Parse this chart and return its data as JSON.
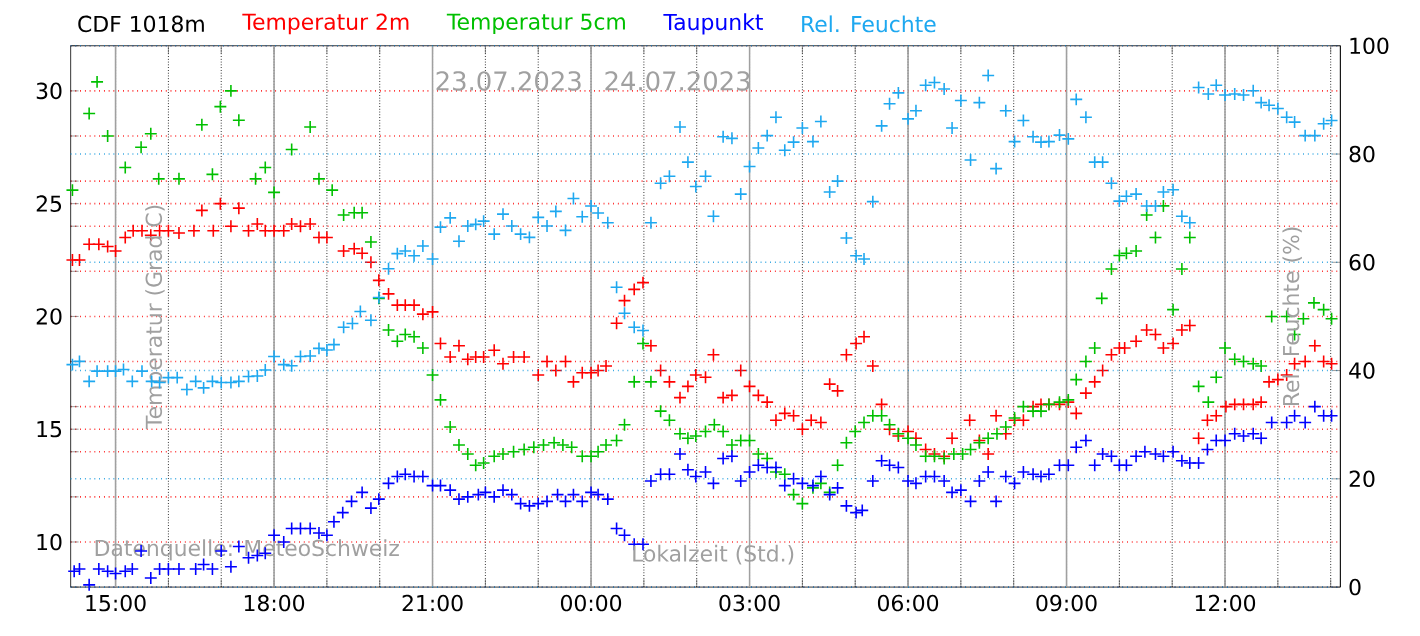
{
  "chart_data": {
    "type": "scatter",
    "title": "CDF 1018m",
    "xlabel": "Lokalzeit (Std.)",
    "ylabel": "Temperatur (Grad C)",
    "y2label": "Rel. Feuchte (%)",
    "annotations": [
      "23.07.2023",
      "24.07.2023",
      "Datenquelle: MeteoSchweiz"
    ],
    "xlim": [
      "2023-07-23T14:09",
      "2023-07-24T14:11"
    ],
    "ylim": [
      8,
      32
    ],
    "y2lim": [
      0,
      100
    ],
    "xticks": [
      {
        "value": "2023-07-23T15:00",
        "label": "15:00"
      },
      {
        "value": "2023-07-23T16:00",
        "label": null
      },
      {
        "value": "2023-07-23T17:00",
        "label": null
      },
      {
        "value": "2023-07-23T18:00",
        "label": "18:00"
      },
      {
        "value": "2023-07-23T19:00",
        "label": null
      },
      {
        "value": "2023-07-23T20:00",
        "label": null
      },
      {
        "value": "2023-07-23T21:00",
        "label": "21:00"
      },
      {
        "value": "2023-07-23T22:00",
        "label": null
      },
      {
        "value": "2023-07-23T23:00",
        "label": null
      },
      {
        "value": "2023-07-24T00:00",
        "label": "00:00"
      },
      {
        "value": "2023-07-24T01:00",
        "label": null
      },
      {
        "value": "2023-07-24T02:00",
        "label": null
      },
      {
        "value": "2023-07-24T03:00",
        "label": "03:00"
      },
      {
        "value": "2023-07-24T04:00",
        "label": null
      },
      {
        "value": "2023-07-24T05:00",
        "label": null
      },
      {
        "value": "2023-07-24T06:00",
        "label": "06:00"
      },
      {
        "value": "2023-07-24T07:00",
        "label": null
      },
      {
        "value": "2023-07-24T08:00",
        "label": null
      },
      {
        "value": "2023-07-24T09:00",
        "label": "09:00"
      },
      {
        "value": "2023-07-24T10:00",
        "label": null
      },
      {
        "value": "2023-07-24T11:00",
        "label": null
      },
      {
        "value": "2023-07-24T12:00",
        "label": "12:00"
      },
      {
        "value": "2023-07-24T13:00",
        "label": null
      },
      {
        "value": "2023-07-24T14:00",
        "label": null
      }
    ],
    "yticks": [
      {
        "value": 8,
        "label": null
      },
      10,
      {
        "value": 12,
        "label": null
      },
      {
        "value": 14,
        "label": null
      },
      15,
      {
        "value": 16,
        "label": null
      },
      {
        "value": 18,
        "label": null
      },
      20,
      {
        "value": 22,
        "label": null
      },
      {
        "value": 24,
        "label": null
      },
      25,
      {
        "value": 26,
        "label": null
      },
      {
        "value": 28,
        "label": null
      },
      30,
      {
        "value": 32,
        "label": null
      }
    ],
    "y2ticks": [
      0,
      20,
      40,
      60,
      80,
      100
    ],
    "grid": true,
    "legend": "top",
    "marker": "cross",
    "series": [
      {
        "name": "Temperatur 2m",
        "color": "#ff0000",
        "x": [
          "2023-07-23T14:11",
          "2023-07-23T14:19",
          "2023-07-23T14:30",
          "2023-07-23T14:41",
          "2023-07-23T14:51",
          "2023-07-23T15:00",
          "2023-07-23T15:11",
          "2023-07-23T15:20",
          "2023-07-23T15:30",
          "2023-07-23T15:40",
          "2023-07-23T15:50",
          "2023-07-23T16:00",
          "2023-07-23T16:12",
          "2023-07-23T16:29",
          "2023-07-23T16:38",
          "2023-07-23T16:51",
          "2023-07-23T16:59",
          "2023-07-23T17:11",
          "2023-07-23T17:20",
          "2023-07-23T17:31",
          "2023-07-23T17:41",
          "2023-07-23T17:50",
          "2023-07-23T18:00",
          "2023-07-23T18:11",
          "2023-07-23T18:20",
          "2023-07-23T18:30",
          "2023-07-23T18:41",
          "2023-07-23T18:51",
          "2023-07-23T19:00",
          "2023-07-23T19:19",
          "2023-07-23T19:31",
          "2023-07-23T19:40",
          "2023-07-23T19:50",
          "2023-07-23T19:59",
          "2023-07-23T20:10",
          "2023-07-23T20:20",
          "2023-07-23T20:29",
          "2023-07-23T20:39",
          "2023-07-23T20:49",
          "2023-07-23T21:00",
          "2023-07-23T21:09",
          "2023-07-23T21:20",
          "2023-07-23T21:30",
          "2023-07-23T21:40",
          "2023-07-23T21:49",
          "2023-07-23T21:58",
          "2023-07-23T22:10",
          "2023-07-23T22:20",
          "2023-07-23T22:32",
          "2023-07-23T22:44",
          "2023-07-23T23:00",
          "2023-07-23T23:10",
          "2023-07-23T23:20",
          "2023-07-23T23:31",
          "2023-07-23T23:40",
          "2023-07-23T23:50",
          "2023-07-24T00:00",
          "2023-07-24T00:08",
          "2023-07-24T00:17",
          "2023-07-24T00:29",
          "2023-07-24T00:38",
          "2023-07-24T00:49",
          "2023-07-24T00:59",
          "2023-07-24T01:08",
          "2023-07-24T01:19",
          "2023-07-24T01:29",
          "2023-07-24T01:41",
          "2023-07-24T01:50",
          "2023-07-24T01:59",
          "2023-07-24T02:10",
          "2023-07-24T02:19",
          "2023-07-24T02:30",
          "2023-07-24T02:40",
          "2023-07-24T02:50",
          "2023-07-24T03:00",
          "2023-07-24T03:10",
          "2023-07-24T03:20",
          "2023-07-24T03:30",
          "2023-07-24T03:40",
          "2023-07-24T03:50",
          "2023-07-24T04:00",
          "2023-07-24T04:10",
          "2023-07-24T04:21",
          "2023-07-24T04:31",
          "2023-07-24T04:40",
          "2023-07-24T04:50",
          "2023-07-24T05:01",
          "2023-07-24T05:10",
          "2023-07-24T05:20",
          "2023-07-24T05:30",
          "2023-07-24T05:39",
          "2023-07-24T05:49",
          "2023-07-24T06:00",
          "2023-07-24T06:09",
          "2023-07-24T06:20",
          "2023-07-24T06:30",
          "2023-07-24T06:41",
          "2023-07-24T06:50",
          "2023-07-24T07:10",
          "2023-07-24T07:21",
          "2023-07-24T07:31",
          "2023-07-24T07:40",
          "2023-07-24T07:51",
          "2023-07-24T08:01",
          "2023-07-24T08:11",
          "2023-07-24T08:22",
          "2023-07-24T08:31",
          "2023-07-24T08:40",
          "2023-07-24T08:52",
          "2023-07-24T09:02",
          "2023-07-24T09:11",
          "2023-07-24T09:22",
          "2023-07-24T09:32",
          "2023-07-24T09:41",
          "2023-07-24T09:51",
          "2023-07-24T10:00",
          "2023-07-24T10:06",
          "2023-07-24T10:19",
          "2023-07-24T10:31",
          "2023-07-24T10:41",
          "2023-07-24T10:50",
          "2023-07-24T11:01",
          "2023-07-24T11:11",
          "2023-07-24T11:20",
          "2023-07-24T11:30",
          "2023-07-24T11:40",
          "2023-07-24T11:50",
          "2023-07-24T12:01",
          "2023-07-24T12:11",
          "2023-07-24T12:21",
          "2023-07-24T12:32",
          "2023-07-24T12:41",
          "2023-07-24T12:50",
          "2023-07-24T13:00",
          "2023-07-24T13:10",
          "2023-07-24T13:19",
          "2023-07-24T13:31",
          "2023-07-24T13:42",
          "2023-07-24T13:52",
          "2023-07-24T14:01"
        ],
        "values": [
          22.5,
          22.5,
          23.2,
          23.2,
          23.1,
          22.9,
          23.5,
          23.8,
          23.8,
          23.6,
          23.8,
          23.8,
          23.7,
          23.8,
          24.7,
          23.8,
          25.0,
          24.0,
          24.8,
          23.8,
          24.1,
          23.8,
          23.8,
          23.8,
          24.1,
          24.0,
          24.1,
          23.5,
          23.5,
          22.9,
          23.0,
          22.8,
          22.4,
          21.6,
          21.0,
          20.5,
          20.5,
          20.5,
          20.1,
          20.2,
          18.8,
          18.2,
          18.7,
          18.1,
          18.2,
          18.2,
          18.5,
          17.9,
          18.2,
          18.2,
          17.4,
          18.0,
          17.6,
          18.0,
          17.1,
          17.5,
          17.5,
          17.6,
          17.8,
          19.7,
          20.7,
          21.2,
          21.5,
          18.7,
          17.6,
          17.1,
          16.4,
          16.9,
          17.4,
          17.3,
          18.3,
          16.4,
          16.5,
          17.6,
          16.9,
          16.5,
          16.2,
          15.4,
          15.7,
          15.6,
          15.0,
          15.4,
          15.3,
          17.0,
          16.7,
          18.3,
          18.8,
          19.1,
          17.8,
          16.1,
          15.0,
          14.7,
          14.9,
          14.6,
          14.1,
          13.9,
          13.8,
          14.6,
          15.4,
          14.5,
          13.9,
          15.6,
          14.8,
          15.4,
          15.4,
          16.0,
          16.1,
          16.1,
          16.1,
          16.2,
          15.7,
          16.6,
          17.1,
          17.6,
          18.3,
          18.6,
          18.6,
          18.9,
          19.4,
          19.2,
          18.6,
          18.8,
          19.4,
          19.6,
          14.6,
          15.4,
          15.6,
          16.0,
          16.1,
          16.1,
          16.1,
          16.2,
          17.1,
          17.2,
          17.4,
          17.9,
          18.0,
          18.7,
          18.0,
          17.9
        ]
      },
      {
        "name": "Temperatur 5cm",
        "color": "#00c000",
        "x": [
          "2023-07-23T14:11",
          "2023-07-23T14:30",
          "2023-07-23T14:39",
          "2023-07-23T14:51",
          "2023-07-23T15:11",
          "2023-07-23T15:29",
          "2023-07-23T15:40",
          "2023-07-23T15:49",
          "2023-07-23T16:12",
          "2023-07-23T16:38",
          "2023-07-23T16:50",
          "2023-07-23T16:59",
          "2023-07-23T17:11",
          "2023-07-23T17:20",
          "2023-07-23T17:39",
          "2023-07-23T17:50",
          "2023-07-23T18:00",
          "2023-07-23T18:20",
          "2023-07-23T18:41",
          "2023-07-23T18:51",
          "2023-07-23T19:06",
          "2023-07-23T19:19",
          "2023-07-23T19:31",
          "2023-07-23T19:40",
          "2023-07-23T19:50",
          "2023-07-23T19:59",
          "2023-07-23T20:10",
          "2023-07-23T20:20",
          "2023-07-23T20:29",
          "2023-07-23T20:39",
          "2023-07-23T20:49",
          "2023-07-23T21:00",
          "2023-07-23T21:09",
          "2023-07-23T21:20",
          "2023-07-23T21:30",
          "2023-07-23T21:40",
          "2023-07-23T21:49",
          "2023-07-23T21:58",
          "2023-07-23T22:10",
          "2023-07-23T22:20",
          "2023-07-23T22:32",
          "2023-07-23T22:44",
          "2023-07-23T22:55",
          "2023-07-23T23:06",
          "2023-07-23T23:18",
          "2023-07-23T23:28",
          "2023-07-23T23:38",
          "2023-07-23T23:50",
          "2023-07-24T00:00",
          "2023-07-24T00:08",
          "2023-07-24T00:17",
          "2023-07-24T00:29",
          "2023-07-24T00:38",
          "2023-07-24T00:49",
          "2023-07-24T00:59",
          "2023-07-24T01:08",
          "2023-07-24T01:19",
          "2023-07-24T01:29",
          "2023-07-24T01:41",
          "2023-07-24T01:50",
          "2023-07-24T01:59",
          "2023-07-24T02:10",
          "2023-07-24T02:20",
          "2023-07-24T02:30",
          "2023-07-24T02:40",
          "2023-07-24T02:50",
          "2023-07-24T03:00",
          "2023-07-24T03:10",
          "2023-07-24T03:20",
          "2023-07-24T03:30",
          "2023-07-24T03:40",
          "2023-07-24T03:50",
          "2023-07-24T04:00",
          "2023-07-24T04:12",
          "2023-07-24T04:21",
          "2023-07-24T04:31",
          "2023-07-24T04:40",
          "2023-07-24T04:50",
          "2023-07-24T05:00",
          "2023-07-24T05:10",
          "2023-07-24T05:20",
          "2023-07-24T05:30",
          "2023-07-24T05:39",
          "2023-07-24T05:49",
          "2023-07-24T06:00",
          "2023-07-24T06:09",
          "2023-07-24T06:20",
          "2023-07-24T06:30",
          "2023-07-24T06:41",
          "2023-07-24T06:52",
          "2023-07-24T07:02",
          "2023-07-24T07:11",
          "2023-07-24T07:21",
          "2023-07-24T07:31",
          "2023-07-24T07:41",
          "2023-07-24T07:51",
          "2023-07-24T08:01",
          "2023-07-24T08:11",
          "2023-07-24T08:22",
          "2023-07-24T08:31",
          "2023-07-24T08:40",
          "2023-07-24T08:52",
          "2023-07-24T09:02",
          "2023-07-24T09:11",
          "2023-07-24T09:22",
          "2023-07-24T09:32",
          "2023-07-24T09:40",
          "2023-07-24T09:51",
          "2023-07-24T10:00",
          "2023-07-24T10:08",
          "2023-07-24T10:19",
          "2023-07-24T10:31",
          "2023-07-24T10:41",
          "2023-07-24T10:50",
          "2023-07-24T11:01",
          "2023-07-24T11:11",
          "2023-07-24T11:20",
          "2023-07-24T11:30",
          "2023-07-24T11:41",
          "2023-07-24T11:50",
          "2023-07-24T12:00",
          "2023-07-24T12:11",
          "2023-07-24T12:21",
          "2023-07-24T12:32",
          "2023-07-24T12:41",
          "2023-07-24T12:53",
          "2023-07-24T13:10",
          "2023-07-24T13:19",
          "2023-07-24T13:29",
          "2023-07-24T13:41",
          "2023-07-24T13:52",
          "2023-07-24T14:01"
        ],
        "values": [
          25.6,
          29.0,
          30.4,
          28.0,
          26.6,
          27.5,
          28.1,
          26.1,
          26.1,
          28.5,
          26.3,
          29.3,
          30.0,
          28.7,
          26.1,
          26.6,
          25.5,
          27.4,
          28.4,
          26.1,
          25.6,
          24.5,
          24.6,
          24.6,
          23.3,
          20.8,
          19.4,
          18.9,
          19.2,
          19.1,
          18.6,
          17.4,
          16.3,
          15.1,
          14.3,
          13.9,
          13.4,
          13.5,
          13.8,
          13.9,
          14.0,
          14.1,
          14.2,
          14.3,
          14.4,
          14.3,
          14.2,
          13.8,
          13.8,
          14.0,
          14.3,
          14.5,
          15.2,
          17.1,
          18.8,
          17.1,
          15.8,
          15.4,
          14.8,
          14.6,
          14.7,
          14.9,
          15.2,
          14.9,
          14.3,
          14.5,
          14.5,
          13.9,
          13.7,
          13.1,
          13.0,
          12.1,
          11.7,
          12.4,
          12.6,
          12.2,
          13.4,
          14.4,
          14.9,
          15.3,
          15.6,
          15.6,
          15.2,
          14.8,
          14.6,
          14.3,
          13.8,
          13.8,
          13.7,
          13.9,
          13.9,
          14.1,
          14.4,
          14.6,
          14.8,
          15.1,
          15.5,
          16.0,
          15.8,
          15.8,
          16.1,
          16.2,
          16.3,
          17.2,
          18.0,
          18.6,
          20.8,
          22.1,
          22.7,
          22.8,
          22.9,
          24.5,
          23.5,
          24.9,
          20.3,
          22.1,
          23.5,
          16.9,
          16.2,
          17.3,
          18.6,
          18.1,
          18.0,
          17.9,
          17.8,
          20.0,
          20.0,
          19.2,
          19.9,
          20.6,
          20.3,
          19.9
        ]
      },
      {
        "name": "Taupunkt",
        "color": "#0000ff",
        "x": [
          "2023-07-23T14:13",
          "2023-07-23T14:19",
          "2023-07-23T14:30",
          "2023-07-23T14:41",
          "2023-07-23T14:51",
          "2023-07-23T15:00",
          "2023-07-23T15:11",
          "2023-07-23T15:19",
          "2023-07-23T15:29",
          "2023-07-23T15:40",
          "2023-07-23T15:50",
          "2023-07-23T16:00",
          "2023-07-23T16:12",
          "2023-07-23T16:31",
          "2023-07-23T16:40",
          "2023-07-23T16:50",
          "2023-07-23T17:00",
          "2023-07-23T17:11",
          "2023-07-23T17:20",
          "2023-07-23T17:31",
          "2023-07-23T17:41",
          "2023-07-23T17:50",
          "2023-07-23T18:00",
          "2023-07-23T18:11",
          "2023-07-23T18:20",
          "2023-07-23T18:30",
          "2023-07-23T18:41",
          "2023-07-23T18:51",
          "2023-07-23T19:00",
          "2023-07-23T19:08",
          "2023-07-23T19:18",
          "2023-07-23T19:28",
          "2023-07-23T19:40",
          "2023-07-23T19:50",
          "2023-07-23T19:59",
          "2023-07-23T20:10",
          "2023-07-23T20:20",
          "2023-07-23T20:29",
          "2023-07-23T20:39",
          "2023-07-23T20:49",
          "2023-07-23T21:00",
          "2023-07-23T21:09",
          "2023-07-23T21:20",
          "2023-07-23T21:30",
          "2023-07-23T21:40",
          "2023-07-23T21:52",
          "2023-07-23T22:00",
          "2023-07-23T22:10",
          "2023-07-23T22:20",
          "2023-07-23T22:30",
          "2023-07-23T22:40",
          "2023-07-23T22:50",
          "2023-07-23T23:00",
          "2023-07-23T23:10",
          "2023-07-23T23:22",
          "2023-07-23T23:31",
          "2023-07-23T23:40",
          "2023-07-23T23:50",
          "2023-07-24T00:00",
          "2023-07-24T00:08",
          "2023-07-24T00:19",
          "2023-07-24T00:29",
          "2023-07-24T00:38",
          "2023-07-24T00:49",
          "2023-07-24T00:59",
          "2023-07-24T01:08",
          "2023-07-24T01:19",
          "2023-07-24T01:29",
          "2023-07-24T01:41",
          "2023-07-24T01:50",
          "2023-07-24T01:59",
          "2023-07-24T02:10",
          "2023-07-24T02:19",
          "2023-07-24T02:30",
          "2023-07-24T02:40",
          "2023-07-24T02:50",
          "2023-07-24T03:00",
          "2023-07-24T03:10",
          "2023-07-24T03:20",
          "2023-07-24T03:30",
          "2023-07-24T03:40",
          "2023-07-24T03:50",
          "2023-07-24T04:00",
          "2023-07-24T04:12",
          "2023-07-24T04:21",
          "2023-07-24T04:31",
          "2023-07-24T04:40",
          "2023-07-24T04:50",
          "2023-07-24T05:01",
          "2023-07-24T05:08",
          "2023-07-24T05:20",
          "2023-07-24T05:30",
          "2023-07-24T05:39",
          "2023-07-24T05:49",
          "2023-07-24T06:00",
          "2023-07-24T06:09",
          "2023-07-24T06:20",
          "2023-07-24T06:30",
          "2023-07-24T06:41",
          "2023-07-24T06:50",
          "2023-07-24T07:00",
          "2023-07-24T07:11",
          "2023-07-24T07:21",
          "2023-07-24T07:31",
          "2023-07-24T07:40",
          "2023-07-24T07:51",
          "2023-07-24T08:01",
          "2023-07-24T08:11",
          "2023-07-24T08:22",
          "2023-07-24T08:31",
          "2023-07-24T08:40",
          "2023-07-24T08:52",
          "2023-07-24T09:02",
          "2023-07-24T09:11",
          "2023-07-24T09:22",
          "2023-07-24T09:32",
          "2023-07-24T09:41",
          "2023-07-24T09:51",
          "2023-07-24T10:00",
          "2023-07-24T10:08",
          "2023-07-24T10:19",
          "2023-07-24T10:29",
          "2023-07-24T10:41",
          "2023-07-24T10:50",
          "2023-07-24T11:01",
          "2023-07-24T11:11",
          "2023-07-24T11:20",
          "2023-07-24T11:30",
          "2023-07-24T11:40",
          "2023-07-24T11:50",
          "2023-07-24T12:00",
          "2023-07-24T12:11",
          "2023-07-24T12:21",
          "2023-07-24T12:32",
          "2023-07-24T12:41",
          "2023-07-24T12:53",
          "2023-07-24T13:10",
          "2023-07-24T13:19",
          "2023-07-24T13:31",
          "2023-07-24T13:42",
          "2023-07-24T13:52",
          "2023-07-24T14:01"
        ],
        "values": [
          8.7,
          8.8,
          8.1,
          8.8,
          8.7,
          8.6,
          8.7,
          8.8,
          9.6,
          8.4,
          8.8,
          8.8,
          8.8,
          8.8,
          9.0,
          8.8,
          9.6,
          8.9,
          9.8,
          9.3,
          9.4,
          9.5,
          10.3,
          10.0,
          10.6,
          10.6,
          10.6,
          10.4,
          10.3,
          10.9,
          11.3,
          11.8,
          12.2,
          11.5,
          11.9,
          12.6,
          12.9,
          13.0,
          12.9,
          12.9,
          12.5,
          12.5,
          12.3,
          11.9,
          12.0,
          12.1,
          12.2,
          12.0,
          12.3,
          12.1,
          11.7,
          11.6,
          11.7,
          11.8,
          12.1,
          11.8,
          12.1,
          11.8,
          12.2,
          12.1,
          11.9,
          10.6,
          10.3,
          9.9,
          9.9,
          12.7,
          13.0,
          13.0,
          13.9,
          13.2,
          12.9,
          13.1,
          12.6,
          13.7,
          13.8,
          12.7,
          13.1,
          13.4,
          13.3,
          13.3,
          12.5,
          12.8,
          12.6,
          12.5,
          12.9,
          12.1,
          12.4,
          11.6,
          11.3,
          11.4,
          12.7,
          13.6,
          13.4,
          13.3,
          12.7,
          12.6,
          12.9,
          12.9,
          12.7,
          12.2,
          12.3,
          11.8,
          12.7,
          13.1,
          11.8,
          12.9,
          12.6,
          13.1,
          13.0,
          12.9,
          13.0,
          13.4,
          13.4,
          14.2,
          14.5,
          13.4,
          13.9,
          13.8,
          13.4,
          13.4,
          13.8,
          14.0,
          13.9,
          13.8,
          14.0,
          13.6,
          13.5,
          13.5,
          14.1,
          14.5,
          14.5,
          14.8,
          14.7,
          14.8,
          14.6,
          15.3,
          15.3,
          15.6,
          15.3,
          16.0,
          15.6,
          15.6
        ]
      },
      {
        "name": "Rel. Feuchte",
        "color": "#1ea8f0",
        "axis": "y2",
        "x": [
          "2023-07-23T14:11",
          "2023-07-23T14:19",
          "2023-07-23T14:30",
          "2023-07-23T14:39",
          "2023-07-23T14:51",
          "2023-07-23T15:00",
          "2023-07-23T15:09",
          "2023-07-23T15:19",
          "2023-07-23T15:30",
          "2023-07-23T15:41",
          "2023-07-23T15:50",
          "2023-07-23T16:00",
          "2023-07-23T16:10",
          "2023-07-23T16:21",
          "2023-07-23T16:31",
          "2023-07-23T16:40",
          "2023-07-23T16:50",
          "2023-07-23T17:00",
          "2023-07-23T17:11",
          "2023-07-23T17:20",
          "2023-07-23T17:31",
          "2023-07-23T17:41",
          "2023-07-23T17:50",
          "2023-07-23T18:00",
          "2023-07-23T18:11",
          "2023-07-23T18:20",
          "2023-07-23T18:30",
          "2023-07-23T18:41",
          "2023-07-23T18:51",
          "2023-07-23T19:00",
          "2023-07-23T19:08",
          "2023-07-23T19:19",
          "2023-07-23T19:29",
          "2023-07-23T19:38",
          "2023-07-23T19:50",
          "2023-07-23T19:59",
          "2023-07-23T20:10",
          "2023-07-23T20:20",
          "2023-07-23T20:29",
          "2023-07-23T20:39",
          "2023-07-23T20:49",
          "2023-07-23T21:00",
          "2023-07-23T21:09",
          "2023-07-23T21:20",
          "2023-07-23T21:30",
          "2023-07-23T21:40",
          "2023-07-23T21:49",
          "2023-07-23T21:58",
          "2023-07-23T22:10",
          "2023-07-23T22:20",
          "2023-07-23T22:30",
          "2023-07-23T22:40",
          "2023-07-23T22:50",
          "2023-07-23T23:00",
          "2023-07-23T23:10",
          "2023-07-23T23:20",
          "2023-07-23T23:31",
          "2023-07-23T23:40",
          "2023-07-23T23:50",
          "2023-07-24T00:00",
          "2023-07-24T00:08",
          "2023-07-24T00:19",
          "2023-07-24T00:29",
          "2023-07-24T00:38",
          "2023-07-24T00:49",
          "2023-07-24T00:59",
          "2023-07-24T01:08",
          "2023-07-24T01:19",
          "2023-07-24T01:29",
          "2023-07-24T01:41",
          "2023-07-24T01:50",
          "2023-07-24T01:59",
          "2023-07-24T02:10",
          "2023-07-24T02:19",
          "2023-07-24T02:30",
          "2023-07-24T02:40",
          "2023-07-24T02:50",
          "2023-07-24T03:00",
          "2023-07-24T03:10",
          "2023-07-24T03:20",
          "2023-07-24T03:30",
          "2023-07-24T03:40",
          "2023-07-24T03:50",
          "2023-07-24T04:00",
          "2023-07-24T04:12",
          "2023-07-24T04:21",
          "2023-07-24T04:31",
          "2023-07-24T04:40",
          "2023-07-24T04:50",
          "2023-07-24T05:01",
          "2023-07-24T05:10",
          "2023-07-24T05:20",
          "2023-07-24T05:30",
          "2023-07-24T05:39",
          "2023-07-24T05:49",
          "2023-07-24T06:00",
          "2023-07-24T06:09",
          "2023-07-24T06:20",
          "2023-07-24T06:30",
          "2023-07-24T06:41",
          "2023-07-24T06:50",
          "2023-07-24T07:00",
          "2023-07-24T07:11",
          "2023-07-24T07:21",
          "2023-07-24T07:31",
          "2023-07-24T07:40",
          "2023-07-24T07:51",
          "2023-07-24T08:01",
          "2023-07-24T08:11",
          "2023-07-24T08:22",
          "2023-07-24T08:31",
          "2023-07-24T08:40",
          "2023-07-24T08:52",
          "2023-07-24T09:02",
          "2023-07-24T09:11",
          "2023-07-24T09:22",
          "2023-07-24T09:32",
          "2023-07-24T09:41",
          "2023-07-24T09:51",
          "2023-07-24T10:00",
          "2023-07-24T10:08",
          "2023-07-24T10:19",
          "2023-07-24T10:31",
          "2023-07-24T10:41",
          "2023-07-24T10:50",
          "2023-07-24T11:01",
          "2023-07-24T11:11",
          "2023-07-24T11:20",
          "2023-07-24T11:30",
          "2023-07-24T11:41",
          "2023-07-24T11:50",
          "2023-07-24T12:00",
          "2023-07-24T12:11",
          "2023-07-24T12:21",
          "2023-07-24T12:32",
          "2023-07-24T12:41",
          "2023-07-24T12:50",
          "2023-07-24T13:00",
          "2023-07-24T13:10",
          "2023-07-24T13:19",
          "2023-07-24T13:31",
          "2023-07-24T13:42",
          "2023-07-24T13:52",
          "2023-07-24T14:01"
        ],
        "values": [
          41.1,
          41.7,
          38.0,
          39.9,
          39.9,
          39.9,
          40.2,
          38.0,
          39.9,
          38.0,
          37.8,
          38.7,
          38.7,
          36.5,
          38.0,
          36.8,
          38.0,
          37.8,
          37.8,
          38.0,
          38.9,
          39.0,
          40.1,
          42.6,
          41.1,
          40.9,
          42.6,
          42.7,
          44.1,
          43.8,
          44.8,
          48.0,
          48.7,
          50.9,
          49.3,
          53.5,
          58.8,
          61.6,
          62.1,
          61.2,
          63.0,
          60.6,
          66.5,
          68.2,
          63.9,
          66.7,
          67.0,
          67.6,
          65.2,
          68.9,
          66.7,
          65.2,
          64.6,
          68.3,
          66.7,
          69.4,
          65.9,
          71.8,
          68.4,
          70.4,
          69.1,
          67.3,
          55.4,
          50.6,
          48.0,
          47.4,
          67.3,
          74.6,
          75.9,
          85.0,
          78.5,
          74.0,
          75.9,
          68.5,
          83.2,
          82.9,
          72.6,
          77.7,
          81.1,
          83.4,
          86.8,
          80.7,
          82.2,
          84.8,
          82.3,
          86.0,
          73.0,
          75.0,
          64.5,
          61.2,
          60.6,
          71.2,
          85.2,
          89.3,
          91.3,
          86.5,
          88.0,
          92.7,
          93.2,
          92.0,
          84.8,
          89.9,
          78.9,
          89.5,
          94.5,
          77.3,
          88.0,
          82.3,
          86.2,
          83.2,
          82.2,
          82.3,
          83.5,
          82.8,
          90.1,
          86.8,
          78.5,
          78.5,
          74.6,
          71.3,
          72.2,
          72.6,
          70.4,
          70.4,
          73.0,
          73.4,
          68.5,
          67.3,
          92.3,
          91.1,
          92.7,
          90.9,
          91.1,
          90.9,
          91.7,
          89.5,
          89.0,
          88.4,
          86.8,
          85.9,
          83.4,
          83.4,
          85.6,
          86.2
        ]
      }
    ]
  }
}
